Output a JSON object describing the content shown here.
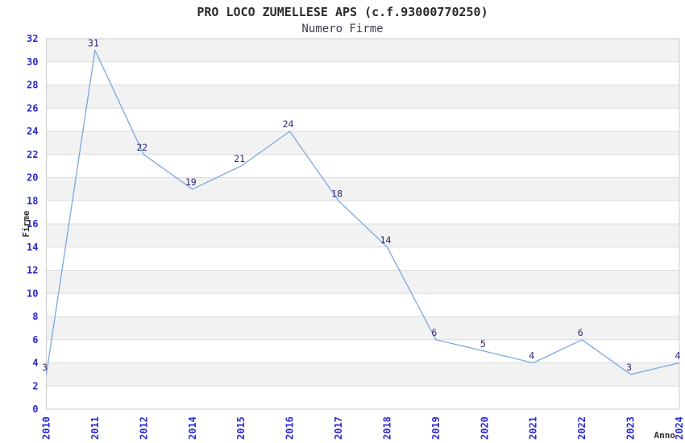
{
  "header": {
    "title": "PRO LOCO ZUMELLESE APS (c.f.93000770250)",
    "subtitle": "Numero Firme"
  },
  "chart_data": {
    "type": "line",
    "title": "PRO LOCO ZUMELLESE APS (c.f.93000770250)",
    "subtitle": "Numero Firme",
    "xlabel": "Anno",
    "ylabel": "Firme",
    "categories": [
      "2010",
      "2011",
      "2012",
      "2014",
      "2015",
      "2016",
      "2017",
      "2018",
      "2019",
      "2020",
      "2021",
      "2022",
      "2023",
      "2024"
    ],
    "values": [
      3,
      31,
      22,
      19,
      21,
      24,
      18,
      14,
      6,
      5,
      4,
      6,
      3,
      4
    ],
    "ylim": [
      0,
      32
    ],
    "ytick_step": 2,
    "yticks": [
      0,
      2,
      4,
      6,
      8,
      10,
      12,
      14,
      16,
      18,
      20,
      22,
      24,
      26,
      28,
      30,
      32
    ],
    "grid": true,
    "banded_background": true,
    "legend": "none",
    "point_labels_visible": true,
    "xtick_rotation_deg": 90,
    "colors": {
      "line": "#79a9e0",
      "point_label": "#29297a",
      "tick_label": "#2b2bd0",
      "axis_title": "#333333",
      "band": "#f2f2f2",
      "band_alt": "#ffffff",
      "gridline": "#dcdcdc",
      "frame": "#cccccc",
      "title": "#2b2b2b",
      "subtitle": "#3b3b50",
      "background": "#ffffff"
    }
  }
}
